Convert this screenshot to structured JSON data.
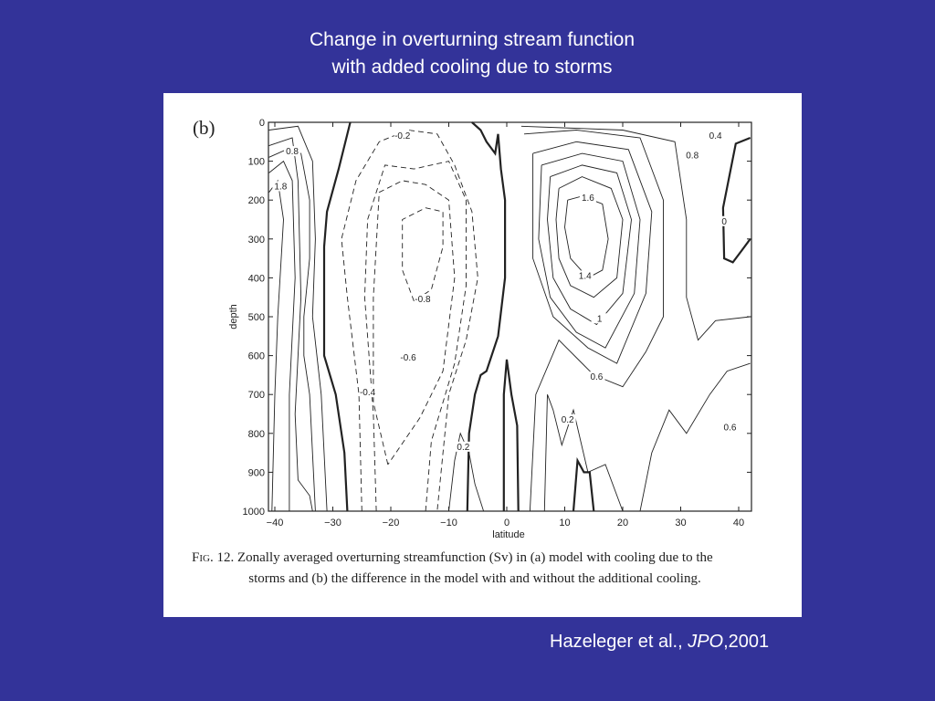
{
  "slide": {
    "title_line1": "Change in overturning stream function",
    "title_line2": "with added cooling due to storms",
    "citation_authors": "Hazeleger et al., ",
    "citation_journal": "JPO",
    "citation_year": ",2001",
    "background_color": "#333399"
  },
  "figure": {
    "panel_label": "(b)",
    "caption_prefix": "Fig.",
    "caption_line1": " 12. Zonally averaged overturning streamfunction (Sv) in (a) model with cooling due to the",
    "caption_line2": "storms and (b) the difference in the model with and without the additional cooling."
  },
  "chart_data": {
    "type": "contour",
    "xlabel": "latitude",
    "ylabel": "depth",
    "xlim": [
      -41,
      42
    ],
    "ylim": [
      1000,
      0
    ],
    "x_ticks": [
      -40,
      -30,
      -20,
      -10,
      0,
      10,
      20,
      30,
      40
    ],
    "x_tick_labels": [
      "-40",
      "-30",
      "-20",
      "-10",
      "0",
      "10",
      "20",
      "30",
      "40"
    ],
    "y_ticks": [
      0,
      100,
      200,
      300,
      400,
      500,
      600,
      700,
      800,
      900,
      1000
    ],
    "y_tick_labels": [
      "0",
      "100",
      "200",
      "300",
      "400",
      "500",
      "600",
      "700",
      "800",
      "900",
      "1000"
    ],
    "y_inverted": true,
    "grid": false,
    "line_style": {
      "positive": "solid",
      "negative": "dashed",
      "zero": "thick solid"
    },
    "contours": [
      {
        "level": 0,
        "points": [
          [
            -27,
            0
          ],
          [
            -29,
            120
          ],
          [
            -31,
            230
          ],
          [
            -31.5,
            320
          ],
          [
            -31.5,
            600
          ],
          [
            -29.5,
            700
          ],
          [
            -28,
            850
          ],
          [
            -27.5,
            1000
          ]
        ]
      },
      {
        "level": 0,
        "points": [
          [
            -6,
            0
          ],
          [
            -4.5,
            20
          ],
          [
            -3.5,
            50
          ],
          [
            -2,
            80
          ],
          [
            -1.5,
            30
          ],
          [
            -1,
            120
          ],
          [
            -0.3,
            200
          ],
          [
            -0.3,
            400
          ],
          [
            -1.5,
            550
          ],
          [
            -3.5,
            640
          ],
          [
            -4.5,
            650
          ],
          [
            -5.5,
            700
          ],
          [
            -6.5,
            800
          ],
          [
            -6.8,
            1000
          ]
        ]
      },
      {
        "level": 0,
        "points": [
          [
            -0.5,
            1000
          ],
          [
            -0.5,
            700
          ],
          [
            0,
            610
          ],
          [
            0.8,
            700
          ],
          [
            1.8,
            780
          ],
          [
            2,
            1000
          ]
        ]
      },
      {
        "level": 0,
        "points": [
          [
            11.5,
            1000
          ],
          [
            12.2,
            870
          ],
          [
            13.3,
            900
          ],
          [
            14.3,
            900
          ],
          [
            15,
            1000
          ]
        ]
      },
      {
        "level": 0,
        "points": [
          [
            42,
            40
          ],
          [
            39.5,
            55
          ],
          [
            37.3,
            220
          ],
          [
            37.5,
            350
          ],
          [
            39,
            360
          ],
          [
            40.5,
            330
          ],
          [
            42,
            300
          ]
        ]
      },
      {
        "level": -0.2,
        "points": [
          [
            -25,
            1000
          ],
          [
            -25.5,
            700
          ],
          [
            -27.5,
            450
          ],
          [
            -28.5,
            300
          ],
          [
            -26,
            150
          ],
          [
            -22,
            50
          ],
          [
            -17,
            20
          ],
          [
            -12,
            30
          ],
          [
            -9,
            110
          ],
          [
            -6,
            230
          ],
          [
            -5,
            400
          ],
          [
            -7,
            560
          ],
          [
            -10,
            700
          ],
          [
            -12,
            1000
          ]
        ]
      },
      {
        "level": -0.4,
        "points": [
          [
            -22.5,
            1000
          ],
          [
            -23,
            750
          ],
          [
            -24.5,
            450
          ],
          [
            -24,
            250
          ],
          [
            -21,
            110
          ],
          [
            -16,
            120
          ],
          [
            -10,
            100
          ],
          [
            -7,
            200
          ],
          [
            -7,
            420
          ],
          [
            -9,
            620
          ],
          [
            -13,
            820
          ],
          [
            -14,
            1000
          ]
        ]
      },
      {
        "level": -0.6,
        "points": [
          [
            -20.5,
            880
          ],
          [
            -23,
            720
          ],
          [
            -23,
            450
          ],
          [
            -22,
            180
          ],
          [
            -18,
            150
          ],
          [
            -14,
            160
          ],
          [
            -10,
            200
          ],
          [
            -9,
            400
          ],
          [
            -11,
            640
          ],
          [
            -15,
            760
          ],
          [
            -20.5,
            880
          ]
        ]
      },
      {
        "level": -0.8,
        "points": [
          [
            -16,
            460
          ],
          [
            -18,
            380
          ],
          [
            -18,
            250
          ],
          [
            -14,
            220
          ],
          [
            -11,
            230
          ],
          [
            -11,
            320
          ],
          [
            -13,
            430
          ],
          [
            -16,
            460
          ]
        ]
      },
      {
        "level": 1.6,
        "points": [
          [
            10.5,
            200
          ],
          [
            13,
            190
          ],
          [
            16.5,
            210
          ],
          [
            17.5,
            300
          ],
          [
            16.5,
            380
          ],
          [
            14,
            400
          ],
          [
            11,
            350
          ],
          [
            10,
            270
          ],
          [
            10.5,
            200
          ]
        ]
      },
      {
        "level": 1.4,
        "points": [
          [
            9,
            170
          ],
          [
            13,
            140
          ],
          [
            18,
            170
          ],
          [
            20,
            250
          ],
          [
            19,
            400
          ],
          [
            15,
            450
          ],
          [
            11,
            420
          ],
          [
            9,
            350
          ],
          [
            8.5,
            250
          ],
          [
            9,
            170
          ]
        ]
      },
      {
        "level": 1.2,
        "points": [
          [
            7.5,
            140
          ],
          [
            13,
            110
          ],
          [
            19,
            130
          ],
          [
            21.5,
            250
          ],
          [
            20,
            440
          ],
          [
            15.5,
            520
          ],
          [
            11,
            480
          ],
          [
            8,
            400
          ],
          [
            7,
            250
          ],
          [
            7.5,
            140
          ]
        ]
      },
      {
        "level": 1,
        "points": [
          [
            6,
            110
          ],
          [
            13,
            80
          ],
          [
            20,
            100
          ],
          [
            23,
            250
          ],
          [
            22,
            440
          ],
          [
            17,
            580
          ],
          [
            12,
            540
          ],
          [
            7.5,
            450
          ],
          [
            5.5,
            300
          ],
          [
            6,
            110
          ]
        ]
      },
      {
        "level": 0.8,
        "points": [
          [
            4.5,
            80
          ],
          [
            12,
            50
          ],
          [
            21,
            70
          ],
          [
            25,
            230
          ],
          [
            24,
            440
          ],
          [
            19,
            620
          ],
          [
            14,
            580
          ],
          [
            8,
            500
          ],
          [
            4.5,
            350
          ],
          [
            4.5,
            80
          ]
        ]
      },
      {
        "level": 0.6,
        "points": [
          [
            3,
            30
          ],
          [
            12,
            20
          ],
          [
            23,
            40
          ],
          [
            27,
            200
          ],
          [
            27,
            500
          ],
          [
            24,
            590
          ],
          [
            20,
            680
          ],
          [
            15,
            650
          ],
          [
            9,
            560
          ],
          [
            5,
            700
          ],
          [
            4,
            1000
          ]
        ]
      },
      {
        "level": 0.4,
        "points": [
          [
            2.5,
            10
          ],
          [
            20,
            20
          ],
          [
            29,
            50
          ],
          [
            31,
            250
          ],
          [
            31,
            450
          ],
          [
            33,
            560
          ],
          [
            36,
            510
          ],
          [
            42,
            500
          ]
        ]
      },
      {
        "level": 0.2,
        "points": [
          [
            6.5,
            1000
          ],
          [
            7,
            700
          ],
          [
            8,
            740
          ],
          [
            9.5,
            830
          ],
          [
            11.5,
            740
          ],
          [
            14,
            900
          ],
          [
            17,
            880
          ],
          [
            20,
            1000
          ]
        ]
      },
      {
        "level": 0.6,
        "points": [
          [
            23,
            1000
          ],
          [
            25,
            850
          ],
          [
            28,
            740
          ],
          [
            31,
            800
          ],
          [
            35,
            700
          ],
          [
            38,
            640
          ],
          [
            42,
            620
          ]
        ]
      },
      {
        "level": 0.2,
        "points": [
          [
            -10,
            1000
          ],
          [
            -9,
            870
          ],
          [
            -8,
            800
          ],
          [
            -6.5,
            850
          ],
          [
            -5.5,
            930
          ],
          [
            -4,
            1000
          ]
        ]
      },
      {
        "level": 0.8,
        "points": [
          [
            -41,
            90
          ],
          [
            -38,
            70
          ],
          [
            -35.5,
            80
          ],
          [
            -34,
            200
          ],
          [
            -34,
            350
          ],
          [
            -35,
            500
          ],
          [
            -35,
            600
          ],
          [
            -34,
            700
          ],
          [
            -33,
            1000
          ]
        ]
      },
      {
        "level": 1.2,
        "points": [
          [
            -41,
            130
          ],
          [
            -38.5,
            100
          ],
          [
            -37,
            150
          ],
          [
            -36.5,
            400
          ],
          [
            -37.5,
            700
          ],
          [
            -37.5,
            1000
          ]
        ]
      },
      {
        "level": 1.8,
        "points": [
          [
            -41,
            180
          ],
          [
            -39.5,
            150
          ],
          [
            -38.5,
            250
          ],
          [
            -39.5,
            500
          ],
          [
            -40,
            700
          ],
          [
            -40.5,
            1000
          ]
        ]
      },
      {
        "level": 0.4,
        "points": [
          [
            -41,
            20
          ],
          [
            -36,
            10
          ],
          [
            -33.5,
            100
          ],
          [
            -33,
            300
          ],
          [
            -33.5,
            500
          ],
          [
            -32,
            700
          ],
          [
            -31,
            1000
          ]
        ]
      },
      {
        "level": 1.4,
        "points": [
          [
            -41,
            60
          ],
          [
            -37,
            40
          ],
          [
            -36,
            150
          ],
          [
            -35.5,
            450
          ],
          [
            -36.5,
            750
          ],
          [
            -36,
            920
          ],
          [
            -34,
            960
          ],
          [
            -33.5,
            1000
          ]
        ]
      }
    ],
    "contour_labels": [
      {
        "text": "-0.2",
        "lat": -18,
        "depth": 40
      },
      {
        "text": "0.4",
        "lat": 36,
        "depth": 40
      },
      {
        "text": "0.8",
        "lat": 32,
        "depth": 90
      },
      {
        "text": "0.8",
        "lat": -37,
        "depth": 80
      },
      {
        "text": "1.8",
        "lat": -39,
        "depth": 170
      },
      {
        "text": "1.6",
        "lat": 14,
        "depth": 200
      },
      {
        "text": "1.4",
        "lat": 13.5,
        "depth": 400
      },
      {
        "text": "1",
        "lat": 16,
        "depth": 510
      },
      {
        "text": "-0.8",
        "lat": -14.5,
        "depth": 460
      },
      {
        "text": "-0.6",
        "lat": -17,
        "depth": 610
      },
      {
        "text": "0.6",
        "lat": 15.5,
        "depth": 660
      },
      {
        "text": "-0.4",
        "lat": -24,
        "depth": 700
      },
      {
        "text": "0.2",
        "lat": 10.5,
        "depth": 770
      },
      {
        "text": "0.2",
        "lat": -7.5,
        "depth": 840
      },
      {
        "text": "0.6",
        "lat": 38.5,
        "depth": 790
      },
      {
        "text": "0",
        "lat": 37.5,
        "depth": 260
      }
    ]
  }
}
